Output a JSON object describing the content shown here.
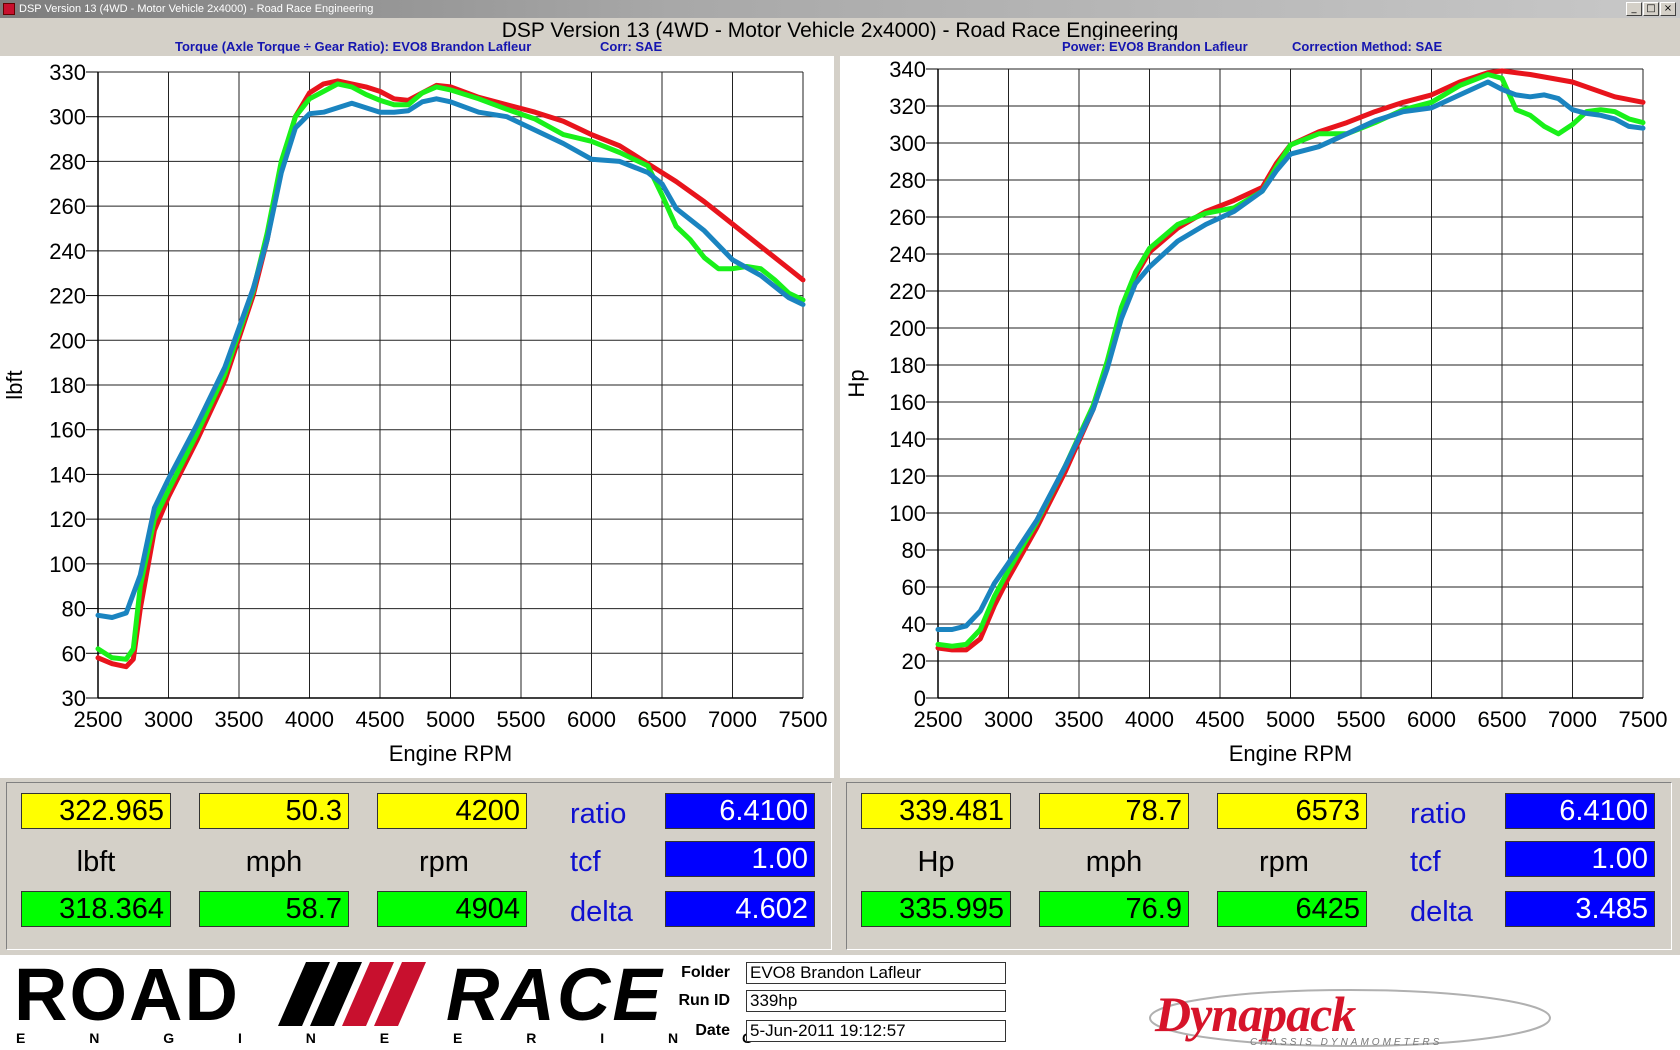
{
  "window": {
    "title": "DSP Version 13 (4WD - Motor Vehicle 2x4000) - Road Race Engineering",
    "app_title": "DSP Version 13 (4WD - Motor Vehicle 2x4000) - Road Race Engineering"
  },
  "left_header": {
    "title": "Torque (Axle Torque ÷ Gear Ratio): EVO8 Brandon Lafleur",
    "corr": "Corr: SAE"
  },
  "right_header": {
    "title": "Power: EVO8 Brandon Lafleur",
    "corr": "Correction Method: SAE"
  },
  "colors": {
    "red": "#e8141c",
    "green": "#19f019",
    "blue": "#1a84c0",
    "ratio_label": "#1010d0"
  },
  "chart_data": [
    {
      "type": "line",
      "name": "torque",
      "title": "",
      "xlabel": "Engine RPM",
      "ylabel": "lbft",
      "xlim": [
        2500,
        7500
      ],
      "ylim": [
        30,
        330
      ],
      "x_ticks": [
        "2500",
        "3000",
        "3500",
        "4000",
        "4500",
        "5000",
        "5500",
        "6000",
        "6500",
        "7000",
        "7500"
      ],
      "y_ticks": [
        "30",
        "60",
        "80",
        "100",
        "120",
        "140",
        "160",
        "180",
        "200",
        "220",
        "240",
        "260",
        "280",
        "300",
        "330"
      ],
      "y_tick_values": [
        30,
        60,
        80,
        100,
        120,
        140,
        160,
        180,
        200,
        220,
        240,
        260,
        280,
        300,
        330
      ],
      "grid": true,
      "series": [
        {
          "color": "red",
          "points": [
            [
              2500,
              57
            ],
            [
              2600,
              53
            ],
            [
              2700,
              51
            ],
            [
              2750,
              56
            ],
            [
              2800,
              80
            ],
            [
              2900,
              115
            ],
            [
              3000,
              130
            ],
            [
              3200,
              155
            ],
            [
              3400,
              182
            ],
            [
              3600,
              220
            ],
            [
              3700,
              245
            ],
            [
              3800,
              278
            ],
            [
              3900,
              300
            ],
            [
              4000,
              316
            ],
            [
              4100,
              322
            ],
            [
              4200,
              324
            ],
            [
              4300,
              322
            ],
            [
              4400,
              320
            ],
            [
              4500,
              317
            ],
            [
              4600,
              312
            ],
            [
              4700,
              311
            ],
            [
              4800,
              316
            ],
            [
              4900,
              321
            ],
            [
              5000,
              320
            ],
            [
              5200,
              313
            ],
            [
              5400,
              308
            ],
            [
              5600,
              303
            ],
            [
              5800,
              298
            ],
            [
              6000,
              292
            ],
            [
              6200,
              287
            ],
            [
              6400,
              279
            ],
            [
              6600,
              271
            ],
            [
              6800,
              262
            ],
            [
              7000,
              252
            ],
            [
              7200,
              242
            ],
            [
              7400,
              232
            ],
            [
              7500,
              227
            ]
          ]
        },
        {
          "color": "green",
          "points": [
            [
              2500,
              62
            ],
            [
              2600,
              57
            ],
            [
              2700,
              56
            ],
            [
              2750,
              62
            ],
            [
              2800,
              90
            ],
            [
              2900,
              120
            ],
            [
              3000,
              133
            ],
            [
              3200,
              158
            ],
            [
              3400,
              185
            ],
            [
              3600,
              222
            ],
            [
              3700,
              248
            ],
            [
              3800,
              280
            ],
            [
              3900,
              300
            ],
            [
              4000,
              312
            ],
            [
              4100,
              317
            ],
            [
              4200,
              322
            ],
            [
              4300,
              320
            ],
            [
              4400,
              315
            ],
            [
              4500,
              311
            ],
            [
              4600,
              308
            ],
            [
              4700,
              308
            ],
            [
              4800,
              316
            ],
            [
              4900,
              320
            ],
            [
              5000,
              318
            ],
            [
              5200,
              312
            ],
            [
              5400,
              305
            ],
            [
              5600,
              299
            ],
            [
              5800,
              292
            ],
            [
              6000,
              289
            ],
            [
              6200,
              284
            ],
            [
              6400,
              278
            ],
            [
              6500,
              265
            ],
            [
              6600,
              251
            ],
            [
              6700,
              245
            ],
            [
              6800,
              237
            ],
            [
              6900,
              232
            ],
            [
              7000,
              232
            ],
            [
              7100,
              233
            ],
            [
              7200,
              232
            ],
            [
              7300,
              227
            ],
            [
              7400,
              221
            ],
            [
              7500,
              218
            ]
          ]
        },
        {
          "color": "blue",
          "points": [
            [
              2500,
              77
            ],
            [
              2600,
              76
            ],
            [
              2700,
              78
            ],
            [
              2800,
              95
            ],
            [
              2900,
              125
            ],
            [
              3000,
              138
            ],
            [
              3200,
              162
            ],
            [
              3400,
              188
            ],
            [
              3600,
              223
            ],
            [
              3700,
              245
            ],
            [
              3800,
              275
            ],
            [
              3900,
              295
            ],
            [
              4000,
              302
            ],
            [
              4100,
              303
            ],
            [
              4200,
              306
            ],
            [
              4300,
              309
            ],
            [
              4400,
              306
            ],
            [
              4500,
              303
            ],
            [
              4600,
              303
            ],
            [
              4700,
              304
            ],
            [
              4800,
              310
            ],
            [
              4900,
              312
            ],
            [
              5000,
              310
            ],
            [
              5200,
              303
            ],
            [
              5400,
              300
            ],
            [
              5600,
              294
            ],
            [
              5800,
              288
            ],
            [
              6000,
              281
            ],
            [
              6200,
              280
            ],
            [
              6400,
              275
            ],
            [
              6500,
              270
            ],
            [
              6600,
              259
            ],
            [
              6800,
              249
            ],
            [
              7000,
              236
            ],
            [
              7200,
              229
            ],
            [
              7400,
              219
            ],
            [
              7500,
              216
            ]
          ]
        }
      ]
    },
    {
      "type": "line",
      "name": "power",
      "title": "",
      "xlabel": "Engine RPM",
      "ylabel": "Hp",
      "xlim": [
        2500,
        7500
      ],
      "ylim": [
        0,
        340
      ],
      "x_ticks": [
        "2500",
        "3000",
        "3500",
        "4000",
        "4500",
        "5000",
        "5500",
        "6000",
        "6500",
        "7000",
        "7500"
      ],
      "y_ticks": [
        "0",
        "20",
        "40",
        "60",
        "80",
        "100",
        "120",
        "140",
        "160",
        "180",
        "200",
        "220",
        "240",
        "260",
        "280",
        "300",
        "320",
        "340"
      ],
      "y_tick_values": [
        0,
        20,
        40,
        60,
        80,
        100,
        120,
        140,
        160,
        180,
        200,
        220,
        240,
        260,
        280,
        300,
        320,
        340
      ],
      "grid": true,
      "series": [
        {
          "color": "red",
          "points": [
            [
              2500,
              27
            ],
            [
              2600,
              26
            ],
            [
              2700,
              26
            ],
            [
              2800,
              32
            ],
            [
              2900,
              50
            ],
            [
              3000,
              65
            ],
            [
              3200,
              92
            ],
            [
              3400,
              122
            ],
            [
              3600,
              156
            ],
            [
              3700,
              180
            ],
            [
              3800,
              209
            ],
            [
              3900,
              228
            ],
            [
              4000,
              241
            ],
            [
              4200,
              254
            ],
            [
              4400,
              263
            ],
            [
              4600,
              269
            ],
            [
              4800,
              276
            ],
            [
              4900,
              289
            ],
            [
              5000,
              299
            ],
            [
              5200,
              306
            ],
            [
              5400,
              311
            ],
            [
              5600,
              317
            ],
            [
              5800,
              322
            ],
            [
              6000,
              326
            ],
            [
              6200,
              333
            ],
            [
              6400,
              338
            ],
            [
              6500,
              339
            ],
            [
              6700,
              337
            ],
            [
              7000,
              333
            ],
            [
              7300,
              325
            ],
            [
              7500,
              322
            ]
          ]
        },
        {
          "color": "green",
          "points": [
            [
              2500,
              29
            ],
            [
              2600,
              28
            ],
            [
              2700,
              29
            ],
            [
              2800,
              37
            ],
            [
              2900,
              55
            ],
            [
              3000,
              69
            ],
            [
              3200,
              95
            ],
            [
              3400,
              125
            ],
            [
              3600,
              158
            ],
            [
              3700,
              182
            ],
            [
              3800,
              211
            ],
            [
              3900,
              230
            ],
            [
              4000,
              243
            ],
            [
              4200,
              256
            ],
            [
              4400,
              262
            ],
            [
              4600,
              265
            ],
            [
              4800,
              274
            ],
            [
              4900,
              287
            ],
            [
              5000,
              299
            ],
            [
              5200,
              305
            ],
            [
              5400,
              305
            ],
            [
              5600,
              311
            ],
            [
              5800,
              318
            ],
            [
              6000,
              322
            ],
            [
              6200,
              331
            ],
            [
              6400,
              337
            ],
            [
              6500,
              335
            ],
            [
              6600,
              318
            ],
            [
              6700,
              315
            ],
            [
              6800,
              309
            ],
            [
              6900,
              305
            ],
            [
              7000,
              310
            ],
            [
              7100,
              317
            ],
            [
              7200,
              318
            ],
            [
              7300,
              317
            ],
            [
              7400,
              313
            ],
            [
              7500,
              311
            ]
          ]
        },
        {
          "color": "blue",
          "points": [
            [
              2500,
              37
            ],
            [
              2600,
              37
            ],
            [
              2700,
              39
            ],
            [
              2800,
              47
            ],
            [
              2900,
              62
            ],
            [
              3000,
              73
            ],
            [
              3200,
              96
            ],
            [
              3400,
              125
            ],
            [
              3600,
              156
            ],
            [
              3700,
              178
            ],
            [
              3800,
              205
            ],
            [
              3900,
              224
            ],
            [
              4000,
              233
            ],
            [
              4200,
              247
            ],
            [
              4400,
              256
            ],
            [
              4600,
              263
            ],
            [
              4800,
              274
            ],
            [
              4900,
              285
            ],
            [
              5000,
              294
            ],
            [
              5200,
              298
            ],
            [
              5400,
              305
            ],
            [
              5600,
              312
            ],
            [
              5800,
              317
            ],
            [
              6000,
              319
            ],
            [
              6200,
              326
            ],
            [
              6400,
              333
            ],
            [
              6500,
              329
            ],
            [
              6600,
              326
            ],
            [
              6700,
              325
            ],
            [
              6800,
              326
            ],
            [
              6900,
              324
            ],
            [
              7000,
              318
            ],
            [
              7100,
              316
            ],
            [
              7200,
              315
            ],
            [
              7300,
              313
            ],
            [
              7400,
              309
            ],
            [
              7500,
              308
            ]
          ]
        }
      ]
    }
  ],
  "left_readout": {
    "v1": "322.965",
    "v2": "50.3",
    "v3": "4200",
    "u1": "lbft",
    "u2": "mph",
    "u3": "rpm",
    "w1": "318.364",
    "w2": "58.7",
    "w3": "4904",
    "ratio_label": "ratio",
    "tcf_label": "tcf",
    "delta_label": "delta",
    "ratio": "6.4100",
    "tcf": "1.00",
    "delta": "4.602"
  },
  "right_readout": {
    "v1": "339.481",
    "v2": "78.7",
    "v3": "6573",
    "u1": "Hp",
    "u2": "mph",
    "u3": "rpm",
    "w1": "335.995",
    "w2": "76.9",
    "w3": "6425",
    "ratio_label": "ratio",
    "tcf_label": "tcf",
    "delta_label": "delta",
    "ratio": "6.4100",
    "tcf": "1.00",
    "delta": "3.485"
  },
  "footer": {
    "logo_main_left": "ROAD",
    "logo_main_right": "RACE",
    "logo_sub": "E N G I N E E R I N G",
    "folder_label": "Folder",
    "folder_value": "EVO8 Brandon Lafleur",
    "runid_label": "Run ID",
    "runid_value": "339hp",
    "date_label": "Date",
    "date_value": "5-Jun-2011 19:12:57",
    "dynapack": "Dynapack",
    "dynapack_sub": "CHASSIS DYNAMOMETERS"
  }
}
